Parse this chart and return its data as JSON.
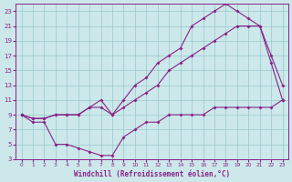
{
  "bg_color": "#cce8ea",
  "line_color": "#882288",
  "grid_color": "#99c8cc",
  "xlabel": "Windchill (Refroidissement éolien,°C)",
  "xlim": [
    0,
    23
  ],
  "ylim": [
    3,
    24
  ],
  "xticks": [
    0,
    1,
    2,
    3,
    4,
    5,
    6,
    7,
    8,
    9,
    10,
    11,
    12,
    13,
    14,
    15,
    16,
    17,
    18,
    19,
    20,
    21,
    22,
    23
  ],
  "yticks": [
    3,
    5,
    7,
    9,
    11,
    13,
    15,
    17,
    19,
    21,
    23
  ],
  "line1_x": [
    0,
    1,
    2,
    3,
    4,
    5,
    6,
    7,
    8,
    9,
    10,
    11,
    12,
    13,
    14,
    15,
    16,
    17,
    18,
    19,
    20,
    21,
    22,
    23
  ],
  "line1_y": [
    9,
    8,
    8,
    5,
    5,
    4.5,
    4,
    3.5,
    3.5,
    6,
    7,
    8,
    8,
    9,
    9,
    9,
    9,
    10,
    10,
    10,
    10,
    10,
    10,
    11
  ],
  "line2_x": [
    0,
    1,
    2,
    3,
    4,
    5,
    6,
    7,
    8,
    9,
    10,
    11,
    12,
    13,
    14,
    15,
    16,
    17,
    18,
    19,
    20,
    21,
    22,
    23
  ],
  "line2_y": [
    9,
    8.5,
    8.5,
    9,
    9,
    9,
    10,
    10,
    9,
    10,
    11,
    12,
    13,
    15,
    16,
    17,
    18,
    19,
    20,
    21,
    21,
    21,
    17,
    13
  ],
  "line3_x": [
    0,
    1,
    2,
    3,
    4,
    5,
    6,
    7,
    8,
    9,
    10,
    11,
    12,
    13,
    14,
    15,
    16,
    17,
    18,
    19,
    20,
    21,
    22,
    23
  ],
  "line3_y": [
    9,
    8.5,
    8.5,
    9,
    9,
    9,
    10,
    11,
    9,
    11,
    13,
    14,
    16,
    17,
    18,
    21,
    22,
    23,
    24,
    23,
    22,
    21,
    16,
    11
  ]
}
